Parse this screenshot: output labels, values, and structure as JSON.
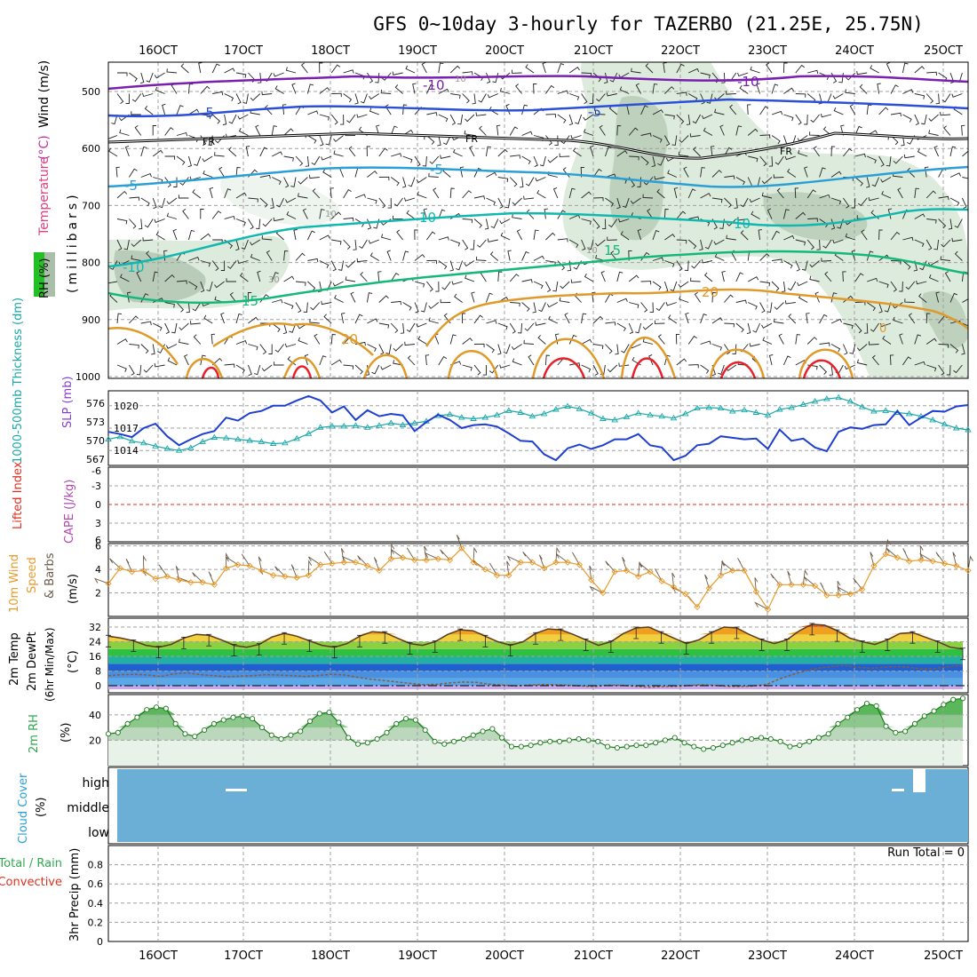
{
  "title": "GFS 0~10day 3-hourly for TAZERBO (21.25E, 25.75N)",
  "date_labels": [
    "16OCT",
    "17OCT",
    "18OCT",
    "19OCT",
    "20OCT",
    "21OCT",
    "22OCT",
    "23OCT",
    "24OCT",
    "25OCT"
  ],
  "colors": {
    "rh_fill": "#dcebdc",
    "rh_dark": "#a9bfa9",
    "frame": "#000000",
    "grid": "#999999",
    "slp": "#1e3fd0",
    "thickness": "#1aa8a8",
    "wind_speed": "#e89a2a",
    "barb": "#6b5a48",
    "cloud": "#6baed6",
    "precip_label_green": "#2fa84f",
    "precip_label_red": "#e03020"
  },
  "panels": {
    "upper_air": {
      "label_rh": "RH (%)",
      "label_temperature": "Temperature",
      "label_celsius": "(°C)",
      "label_wind": "Wind (m/s)",
      "label_mb": "(millibars)",
      "pressure_ticks": [
        "500",
        "600",
        "700",
        "800",
        "900",
        "1000"
      ],
      "isotherm_labels": [
        "-10",
        "-10",
        "-5",
        "-5",
        "FR",
        "FR",
        "FR",
        "-5",
        "-5",
        "10",
        "10",
        "-10",
        "15",
        "15",
        "20",
        "20",
        "10",
        "10",
        "10",
        "30",
        "0"
      ]
    },
    "slp_thickness": {
      "label_thickness": "1000-500mb Thickness (dm)",
      "label_slp": "SLP (mb)",
      "left_ticks": [
        "576",
        "573",
        "570",
        "567"
      ],
      "right_ticks": [
        "1020",
        "1017",
        "1014"
      ]
    },
    "stability": {
      "label_li": "Lifted Index",
      "label_cape": "CAPE (J/kg)",
      "ticks": [
        "-6",
        "-3",
        "0",
        "3",
        "6"
      ]
    },
    "wind10m": {
      "label_main": "10m Wind",
      "label_speed": "Speed",
      "label_barbs": "& Barbs",
      "label_units": "(m/s)",
      "ticks": [
        "6",
        "4",
        "2"
      ]
    },
    "temp2m": {
      "label_temp": "2m Temp",
      "label_dewpt": "2m DewPt",
      "label_minmax": "(6hr Min/Max)",
      "label_units": "(°C)",
      "ticks": [
        "32",
        "24",
        "16",
        "8",
        "0"
      ]
    },
    "rh2m": {
      "label_main": "2m RH",
      "label_units": "(%)",
      "ticks": [
        "40",
        "20"
      ]
    },
    "cloud": {
      "label_main": "Cloud Cover",
      "label_units": "(%)",
      "levels": [
        "high",
        "middle",
        "low"
      ]
    },
    "precip": {
      "label_total": "Total / Rain",
      "label_convective": "Convective",
      "label_main": "3hr Precip (mm)",
      "run_total": "Run Total = 0",
      "ticks": [
        "0.8",
        "0.6",
        "0.4",
        "0.2",
        "0"
      ]
    }
  },
  "chart_data": [
    {
      "type": "line",
      "title": "SLP and 1000-500mb Thickness",
      "x_unit": "3-hourly steps from 15OCT 12Z",
      "series": [
        {
          "name": "SLP (mb)",
          "ylim": [
            1012,
            1022
          ],
          "values": [
            1016.5,
            1016.2,
            1015.8,
            1017,
            1017.6,
            1015.9,
            1014.7,
            1015.5,
            1016.2,
            1016.6,
            1018.4,
            1018,
            1019,
            1019.3,
            1020,
            1020,
            1020.7,
            1021.3,
            1020.7,
            1019.1,
            1019.9,
            1018.1,
            1019.4,
            1018.6,
            1018.9,
            1018.7,
            1016.6,
            1017.8,
            1018.8,
            1018.1,
            1017,
            1017.4,
            1017.5,
            1017.2,
            1016.3,
            1015.3,
            1015.2,
            1013.5,
            1012.7,
            1014.3,
            1014.8,
            1014.2,
            1014.7,
            1015.5,
            1015.5,
            1016.2,
            1014.7,
            1014.4,
            1012.7,
            1013.3,
            1014.7,
            1014.9,
            1015.9,
            1015.7,
            1015.5,
            1015.6,
            1014.2,
            1016.8,
            1015.3,
            1015.6,
            1014.4,
            1013.9,
            1016.5,
            1017.1,
            1016.9,
            1017.4,
            1017.5,
            1019.3,
            1017.4,
            1018.4,
            1019.3,
            1019.2,
            1019.9,
            1020.1
          ]
        },
        {
          "name": "Thickness (dm)",
          "ylim": [
            566,
            578
          ],
          "values": [
            570.2,
            570.6,
            569.9,
            569.6,
            569.1,
            568.7,
            568.4,
            568.8,
            569.8,
            570.5,
            570.4,
            570.2,
            570,
            569.8,
            569.5,
            569.6,
            570.3,
            571.1,
            572.1,
            572.3,
            572.3,
            572.4,
            572.1,
            572.4,
            572.8,
            572.5,
            572.8,
            573.1,
            574,
            574.2,
            573.7,
            573.5,
            573.7,
            574.1,
            574.8,
            574.5,
            573.9,
            574.3,
            575,
            575.5,
            575.1,
            574.4,
            573.5,
            573.3,
            573.8,
            574.4,
            574.1,
            573.9,
            573.6,
            574.3,
            575.2,
            575.3,
            575.2,
            574.7,
            574.9,
            574.5,
            574.1,
            575,
            575.3,
            575.8,
            576.3,
            576.7,
            576.9,
            576.3,
            575.4,
            574.7,
            574.8,
            574.5,
            574.3,
            573.9,
            573.3,
            572.6,
            572,
            571.7
          ]
        }
      ]
    },
    {
      "type": "line",
      "title": "10m Wind Speed (m/s)",
      "ylim": [
        0,
        6
      ],
      "values": [
        2.8,
        4.1,
        3.8,
        3.9,
        3.2,
        3.4,
        3.1,
        2.9,
        2.9,
        2.7,
        4.1,
        4.4,
        4.3,
        3.9,
        3.5,
        3.4,
        3.3,
        3.5,
        4.4,
        4.5,
        4.6,
        4.6,
        4.3,
        3.9,
        4.9,
        5,
        4.8,
        4.8,
        4.9,
        4.8,
        5.8,
        4.6,
        4,
        3.5,
        3.5,
        4.6,
        4.6,
        4.1,
        4.6,
        4.6,
        4.4,
        3.1,
        2,
        3.8,
        3.9,
        3.4,
        3.8,
        3,
        2.5,
        1.9,
        0.8,
        2.4,
        3.5,
        3.9,
        3.9,
        2.1,
        0.6,
        2.7,
        2.7,
        2.7,
        2.6,
        1.8,
        1.8,
        1.9,
        2.3,
        4.3,
        5.3,
        5,
        4.7,
        4.8,
        4.7,
        4.5,
        4.3,
        3.9
      ]
    },
    {
      "type": "area",
      "title": "2m Temp / DewPt (°C)",
      "ylim": [
        0,
        34
      ],
      "series": [
        {
          "name": "2m Temp",
          "values": [
            27,
            26,
            24.5,
            22,
            21,
            22.5,
            26,
            28,
            27.5,
            25,
            22,
            21,
            22.5,
            26.5,
            28.5,
            27,
            24.5,
            22,
            21,
            23,
            27,
            29.5,
            29,
            26,
            23,
            22,
            24,
            28,
            30.5,
            30,
            27,
            24,
            22,
            24,
            28.5,
            31,
            30.5,
            28,
            25,
            22,
            24,
            28.5,
            31.5,
            32,
            29,
            26,
            23,
            25,
            29,
            32,
            31.5,
            28,
            25,
            23,
            25,
            30,
            33.5,
            33,
            30,
            26,
            24,
            22.5,
            25,
            28.5,
            29,
            26.5,
            24,
            21,
            20
          ]
        },
        {
          "name": "2m DewPt",
          "values": [
            5.5,
            6,
            6.2,
            5.8,
            5,
            6.5,
            7,
            6,
            5.5,
            4.8,
            5.2,
            5.5,
            6,
            5.8,
            5.5,
            5,
            5.6,
            6.2,
            5.8,
            4.5,
            3.5,
            2.8,
            2,
            1.2,
            0.5,
            0.8,
            1.5,
            2,
            1.8,
            0.8,
            0.3,
            -0.2,
            0.3,
            0.6,
            0.5,
            0.2,
            -0.2,
            -0.5,
            0.3,
            0.2,
            -0.3,
            -0.8,
            -0.6,
            -0.4,
            0,
            0.5,
            0.2,
            -0.3,
            -0.5,
            -0.2,
            0.5,
            3.5,
            6,
            8,
            9.5,
            10.5,
            11,
            10,
            9.5,
            10,
            10.5,
            10,
            9,
            9.5,
            10.5,
            11
          ]
        }
      ]
    },
    {
      "type": "area",
      "title": "2m RH (%)",
      "ylim": [
        0,
        55
      ],
      "values": [
        25,
        26,
        33,
        38,
        44,
        46,
        45,
        33,
        25,
        23,
        28,
        33,
        36,
        38,
        39,
        37,
        30,
        24,
        21,
        24,
        27,
        35,
        41,
        42,
        34,
        22,
        17,
        18,
        21,
        26,
        33,
        37,
        36,
        28,
        19,
        17,
        19,
        21,
        24,
        27,
        29,
        22,
        15,
        15,
        16,
        18,
        19,
        19,
        20,
        21,
        20,
        19,
        15,
        14,
        15,
        16,
        16,
        18,
        20,
        22,
        18,
        15,
        13,
        14,
        16,
        18,
        20,
        21,
        22,
        21,
        19,
        15,
        16,
        19,
        22,
        25,
        33,
        38,
        44,
        49,
        47,
        31,
        26,
        27,
        33,
        39,
        43,
        48,
        52,
        53
      ]
    },
    {
      "type": "bar",
      "title": "3hr Precip (mm)",
      "ylim": [
        0,
        1
      ],
      "values": [
        0
      ]
    }
  ]
}
